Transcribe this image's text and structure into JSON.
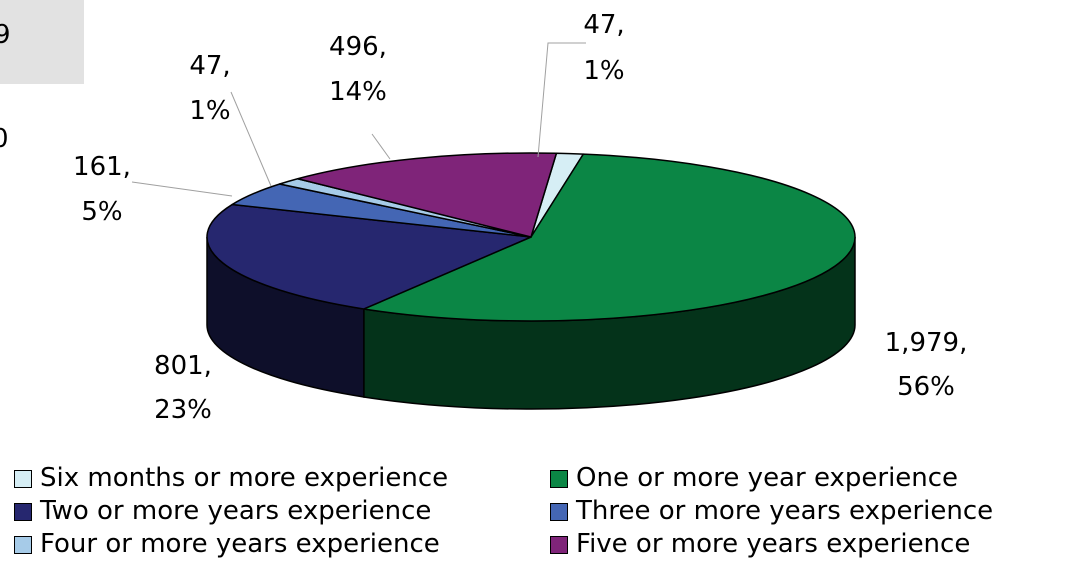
{
  "cutoff": {
    "box_text": "9",
    "side_text": "0"
  },
  "chart_data": {
    "type": "pie",
    "is_3d": true,
    "legend_position": "bottom",
    "slices": [
      {
        "name": "Six months or more experience",
        "value": 47,
        "percent": "1%",
        "label": "47,",
        "pct_label": "1%",
        "color": "#d6eef5"
      },
      {
        "name": "One or more year experience",
        "value": 1979,
        "percent": "56%",
        "label": "1,979,",
        "pct_label": "56%",
        "color": "#0b8645"
      },
      {
        "name": "Two or more years experience",
        "value": 801,
        "percent": "23%",
        "label": "801,",
        "pct_label": "23%",
        "color": "#26276f"
      },
      {
        "name": "Three or more years experience",
        "value": 161,
        "percent": "5%",
        "label": "161,",
        "pct_label": "5%",
        "color": "#4466b4"
      },
      {
        "name": "Four or more years experience",
        "value": 47,
        "percent": "1%",
        "label": "47,",
        "pct_label": "1%",
        "color": "#a6cbe8"
      },
      {
        "name": "Five or more years experience",
        "value": 496,
        "percent": "14%",
        "label": "496,",
        "pct_label": "14%",
        "color": "#7f2479"
      }
    ]
  }
}
